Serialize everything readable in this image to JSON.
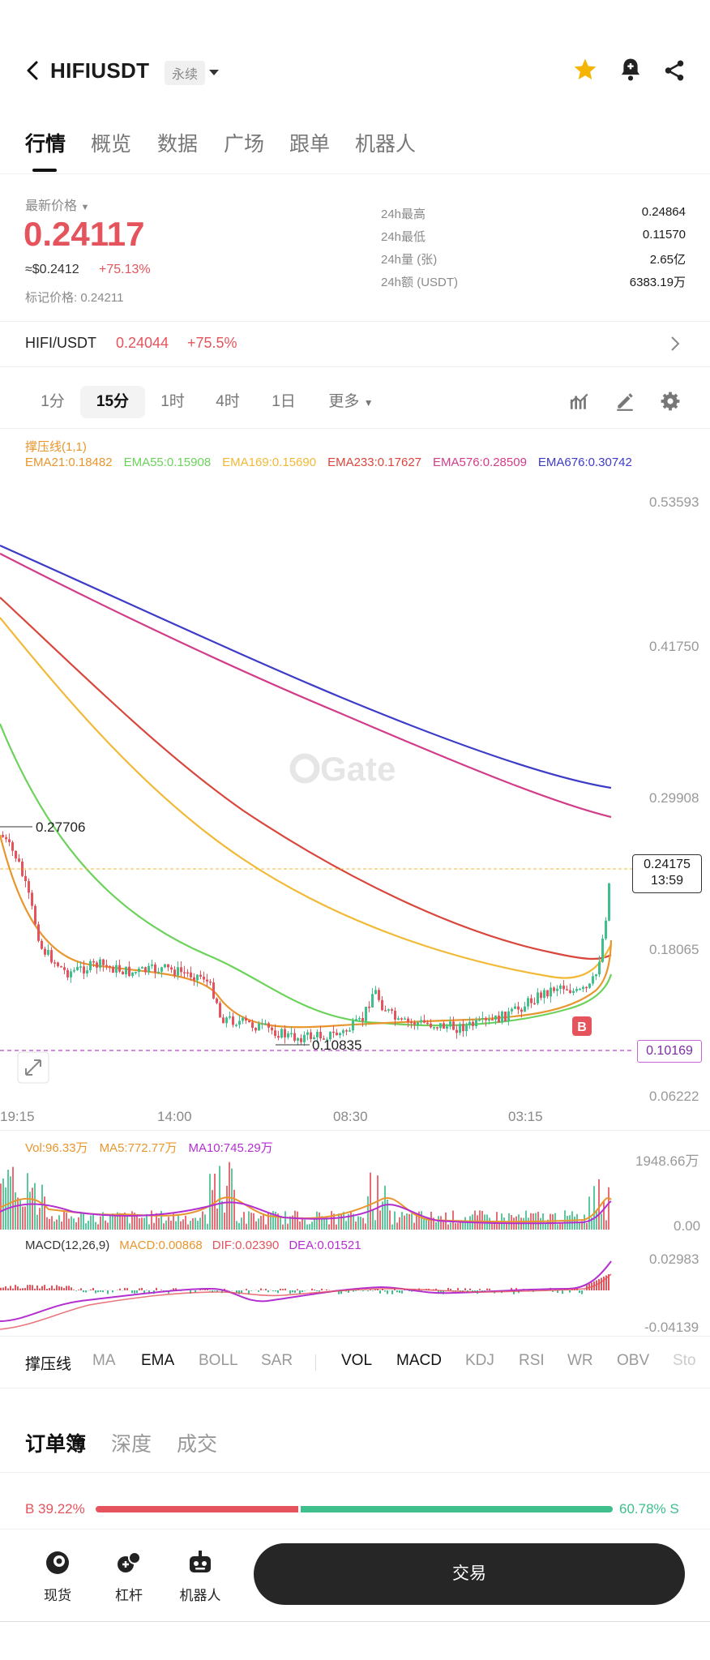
{
  "header": {
    "back_icon": "chevron-left-icon",
    "pair": "HIFIUSDT",
    "contract_type": "永续",
    "favorite_color": "#f5b400"
  },
  "top_tabs": [
    "行情",
    "概览",
    "数据",
    "广场",
    "跟单",
    "机器人"
  ],
  "price": {
    "latest_label": "最新价格",
    "last": "0.24117",
    "usd": "≈$0.2412",
    "change": "+75.13%",
    "mark_label": "标记价格:",
    "mark": "0.24211"
  },
  "stats": [
    {
      "label": "24h最高",
      "value": "0.24864"
    },
    {
      "label": "24h最低",
      "value": "0.11570"
    },
    {
      "label": "24h量 (张)",
      "value": "2.65亿"
    },
    {
      "label": "24h额 (USDT)",
      "value": "6383.19万"
    }
  ],
  "spot_row": {
    "pair": "HIFI/USDT",
    "price": "0.24044",
    "change": "+75.5%"
  },
  "intervals": [
    "1分",
    "15分",
    "1时",
    "4时",
    "1日",
    "更多"
  ],
  "active_interval": "15分",
  "chart": {
    "support_label": "撑压线(1,1)",
    "ema_legend": [
      {
        "text": "EMA21:0.18482",
        "color": "#e8962e"
      },
      {
        "text": "EMA55:0.15908",
        "color": "#6cd25b"
      },
      {
        "text": "EMA169:0.15690",
        "color": "#f2b937"
      },
      {
        "text": "EMA233:0.17627",
        "color": "#d9463c"
      },
      {
        "text": "EMA576:0.28509",
        "color": "#d23d8a"
      },
      {
        "text": "EMA676:0.30742",
        "color": "#3c3cc8"
      }
    ],
    "price_axis": [
      "0.53593",
      "0.41750",
      "0.29908",
      "0.18065",
      "0.06222"
    ],
    "current_price_tag": "0.24175",
    "countdown": "13:59",
    "low_line_tag": "0.10169",
    "high_marker": "0.27706",
    "low_marker": "0.10835",
    "buy_marker": "B",
    "watermark": "Gate",
    "time_axis": [
      "19:15",
      "14:00",
      "08:30",
      "03:15"
    ],
    "up_color": "#3ebf8c",
    "down_color": "#e5545d"
  },
  "volume": {
    "vol": "Vol:96.33万",
    "ma5": "MA5:772.77万",
    "ma10": "MA10:745.29万",
    "axis_top": "1948.66万",
    "axis_bottom": "0.00"
  },
  "macd": {
    "title": "MACD(12,26,9)",
    "macd": "MACD:0.00868",
    "dif": "DIF:0.02390",
    "dea": "DEA:0.01521",
    "axis_top": "0.02983",
    "axis_bottom": "-0.04139"
  },
  "indicator_tabs": [
    "撑压线",
    "MA",
    "EMA",
    "BOLL",
    "SAR",
    "VOL",
    "MACD",
    "KDJ",
    "RSI",
    "WR",
    "OBV",
    "Sto"
  ],
  "order_tabs": [
    "订单簿",
    "深度",
    "成交"
  ],
  "ratio": {
    "buy": "B 39.22%",
    "sell": "60.78% S",
    "buy_fraction": 0.3922
  },
  "bottom_nav": [
    "现货",
    "杠杆",
    "机器人"
  ],
  "trade_button": "交易"
}
